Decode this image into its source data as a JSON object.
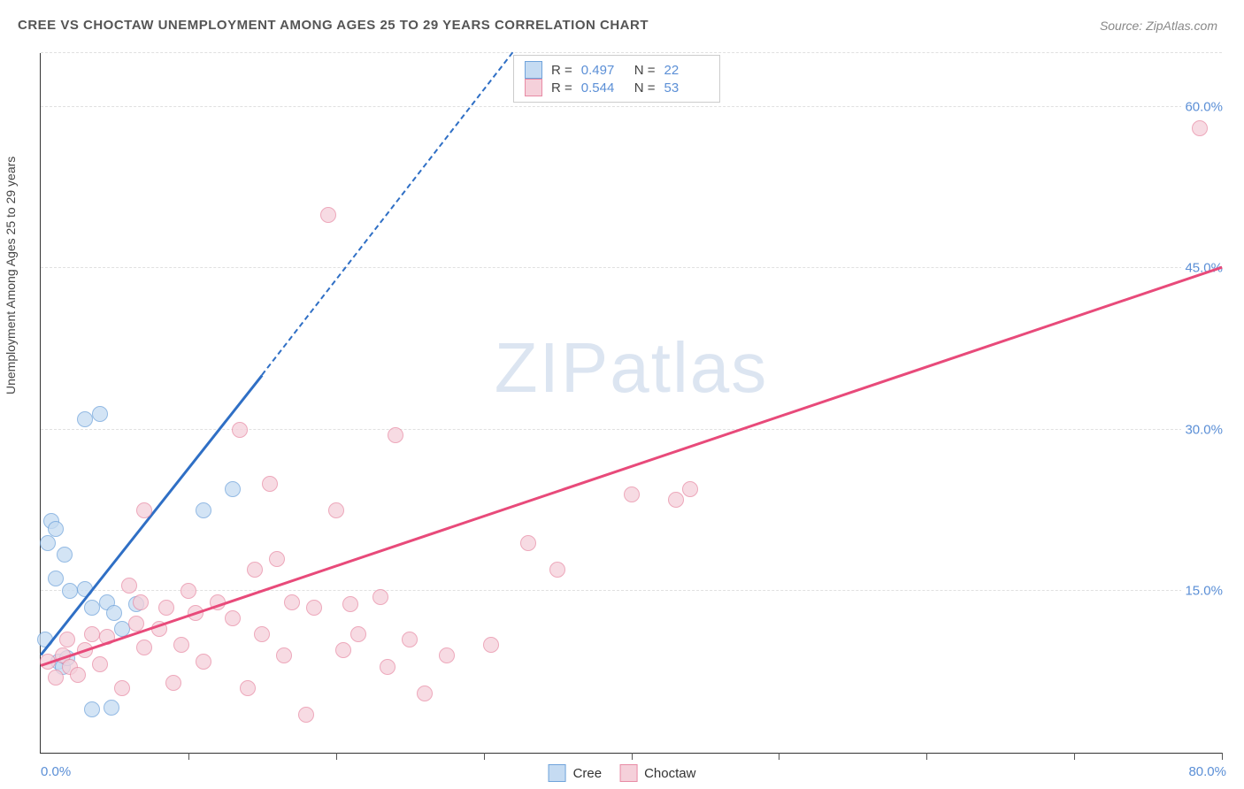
{
  "header": {
    "title": "CREE VS CHOCTAW UNEMPLOYMENT AMONG AGES 25 TO 29 YEARS CORRELATION CHART",
    "source_prefix": "Source: ",
    "source_name": "ZipAtlas.com"
  },
  "watermark": {
    "part1": "ZIP",
    "part2": "atlas"
  },
  "chart": {
    "type": "scatter",
    "y_axis_label": "Unemployment Among Ages 25 to 29 years",
    "xlim": [
      0,
      80
    ],
    "ylim": [
      0,
      65
    ],
    "x_origin_label": "0.0%",
    "x_max_label": "80.0%",
    "x_tick_positions": [
      10,
      20,
      30,
      40,
      50,
      60,
      70,
      80
    ],
    "y_gridlines": [
      {
        "value": 15,
        "label": "15.0%"
      },
      {
        "value": 30,
        "label": "30.0%"
      },
      {
        "value": 45,
        "label": "45.0%"
      },
      {
        "value": 60,
        "label": "60.0%"
      },
      {
        "value": 65,
        "label": ""
      }
    ],
    "grid_color": "#e0e0e0",
    "axis_color": "#333333",
    "tick_label_color": "#5b8fd6",
    "background_color": "#ffffff",
    "point_radius": 9,
    "point_opacity": 0.75,
    "series": [
      {
        "name": "Cree",
        "fill": "#c5dbf2",
        "stroke": "#6fa3db",
        "line_color": "#2f6fc5",
        "r_value": "0.497",
        "n_value": "22",
        "trend": {
          "x1": 0,
          "y1": 9,
          "x2": 15,
          "y2": 35,
          "ext_x2": 32,
          "ext_y2": 65
        },
        "points": [
          [
            0.3,
            10.5
          ],
          [
            0.5,
            19.5
          ],
          [
            0.7,
            21.5
          ],
          [
            1.0,
            16.2
          ],
          [
            1.0,
            20.8
          ],
          [
            1.2,
            8.5
          ],
          [
            1.5,
            8.0
          ],
          [
            1.6,
            18.4
          ],
          [
            1.8,
            8.8
          ],
          [
            2.0,
            15.0
          ],
          [
            3.0,
            31.0
          ],
          [
            3.0,
            15.2
          ],
          [
            3.5,
            13.5
          ],
          [
            3.5,
            4.0
          ],
          [
            4.0,
            31.5
          ],
          [
            4.5,
            14.0
          ],
          [
            4.8,
            4.2
          ],
          [
            5.0,
            13.0
          ],
          [
            5.5,
            11.5
          ],
          [
            6.5,
            13.8
          ],
          [
            11.0,
            22.5
          ],
          [
            13.0,
            24.5
          ]
        ]
      },
      {
        "name": "Choctaw",
        "fill": "#f5d0da",
        "stroke": "#e88ba5",
        "line_color": "#e84a7a",
        "r_value": "0.544",
        "n_value": "53",
        "trend": {
          "x1": 0,
          "y1": 8,
          "x2": 80,
          "y2": 45
        },
        "points": [
          [
            0.5,
            8.5
          ],
          [
            1.0,
            7.0
          ],
          [
            1.5,
            9.0
          ],
          [
            1.8,
            10.5
          ],
          [
            2.0,
            8.0
          ],
          [
            2.5,
            7.2
          ],
          [
            3.0,
            9.5
          ],
          [
            3.5,
            11.0
          ],
          [
            4.0,
            8.2
          ],
          [
            4.5,
            10.8
          ],
          [
            5.5,
            6.0
          ],
          [
            6.0,
            15.5
          ],
          [
            6.5,
            12.0
          ],
          [
            6.8,
            14.0
          ],
          [
            7.0,
            9.8
          ],
          [
            7.0,
            22.5
          ],
          [
            8.0,
            11.5
          ],
          [
            8.5,
            13.5
          ],
          [
            9.0,
            6.5
          ],
          [
            9.5,
            10.0
          ],
          [
            10.0,
            15.0
          ],
          [
            10.5,
            13.0
          ],
          [
            11.0,
            8.5
          ],
          [
            12.0,
            14.0
          ],
          [
            13.0,
            12.5
          ],
          [
            13.5,
            30.0
          ],
          [
            14.0,
            6.0
          ],
          [
            14.5,
            17.0
          ],
          [
            15.0,
            11.0
          ],
          [
            15.5,
            25.0
          ],
          [
            16.0,
            18.0
          ],
          [
            16.5,
            9.0
          ],
          [
            17.0,
            14.0
          ],
          [
            18.0,
            3.5
          ],
          [
            18.5,
            13.5
          ],
          [
            19.5,
            50.0
          ],
          [
            20.0,
            22.5
          ],
          [
            20.5,
            9.5
          ],
          [
            21.0,
            13.8
          ],
          [
            21.5,
            11.0
          ],
          [
            23.0,
            14.5
          ],
          [
            23.5,
            8.0
          ],
          [
            24.0,
            29.5
          ],
          [
            25.0,
            10.5
          ],
          [
            26.0,
            5.5
          ],
          [
            27.5,
            9.0
          ],
          [
            30.5,
            10.0
          ],
          [
            33.0,
            19.5
          ],
          [
            35.0,
            17.0
          ],
          [
            40.0,
            24.0
          ],
          [
            43.0,
            23.5
          ],
          [
            44.0,
            24.5
          ],
          [
            78.5,
            58.0
          ]
        ]
      }
    ],
    "legend": [
      {
        "label": "Cree",
        "fill": "#c5dbf2",
        "stroke": "#6fa3db"
      },
      {
        "label": "Choctaw",
        "fill": "#f5d0da",
        "stroke": "#e88ba5"
      }
    ]
  }
}
